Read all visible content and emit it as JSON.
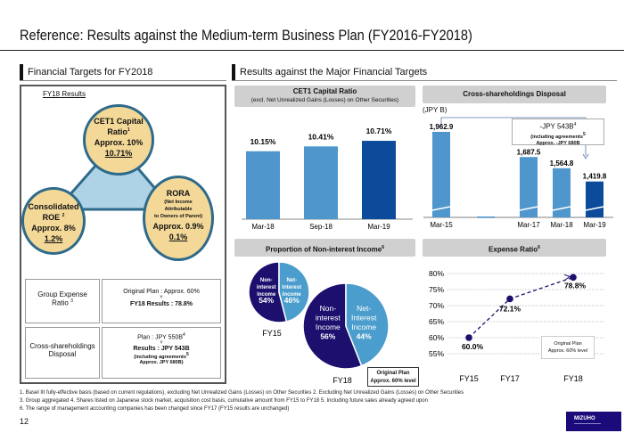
{
  "page": {
    "title": "Reference: Results against the Medium-term Business Plan (FY2016-FY2018)",
    "page_number": "12",
    "logo": "MIZUHO",
    "brand_color": "#1a0a7a"
  },
  "left": {
    "section_title": "Financial Targets for FY2018",
    "results_label": "FY18 Results",
    "circles": [
      {
        "id": "cet1",
        "title": "CET1 Capital",
        "title2": "Ratio",
        "sup": "1",
        "target": "Approx. 10%",
        "result": "10.71%"
      },
      {
        "id": "roe",
        "title": "Consolidated",
        "title2": "ROE",
        "sup": "2",
        "target": "Approx. 8%",
        "result": "1.2%"
      },
      {
        "id": "rora",
        "title": "RORA",
        "sub": [
          "(Net Income",
          "Attributable",
          "to Owners of Parent)"
        ],
        "target": "Approx. 0.9%",
        "result": "0.1%"
      }
    ],
    "table": [
      {
        "label": "Group Expense",
        "label2": "Ratio",
        "sup": "3",
        "line1": "Original Plan : Approx. 60%",
        "line2": "FY18 Results : 78.8%"
      },
      {
        "label": "Cross-shareholdings",
        "label2": "Disposal",
        "line1": "Plan : JPY 550B",
        "line1_sup": "4",
        "line2": "Results : JPY 543B",
        "line3": "(including agreements",
        "line3_sup": "5",
        "line4": "Approx. JPY 680B)"
      }
    ]
  },
  "right": {
    "section_title": "Results against the Major Financial Targets"
  },
  "chart_data": [
    {
      "id": "cet1",
      "type": "bar",
      "title": "CET1 Capital Ratio",
      "subtitle": "(excl. Net Unrealized Gains (Losses) on Other Securities)",
      "categories": [
        "Mar-18",
        "Sep-18",
        "Mar-19"
      ],
      "values": [
        10.15,
        10.41,
        10.71
      ],
      "labels": [
        "10.15%",
        "10.41%",
        "10.71%"
      ],
      "colors": [
        "#4f96cc",
        "#4f96cc",
        "#0c4a9a"
      ],
      "ylim": [
        6.5,
        11.0
      ]
    },
    {
      "id": "cross",
      "type": "bar",
      "title": "Cross-shareholdings Disposal",
      "unit": "(JPY B)",
      "categories": [
        "Mar-15",
        "",
        "Mar-17",
        "Mar-18",
        "Mar-19"
      ],
      "values": [
        1962.9,
        null,
        1687.5,
        1564.8,
        1419.8
      ],
      "labels": [
        "1,962.9",
        "",
        "1,687.5",
        "1,564.8",
        "1,419.8"
      ],
      "colors": [
        "#4f96cc",
        "#4f96cc",
        "#4f96cc",
        "#4f96cc",
        "#0c4a9a"
      ],
      "axis_break": true,
      "annotation": {
        "line1": "-JPY 543B",
        "sup1": "4",
        "line2": "(including agreements",
        "sup2": "5",
        "line3": "Approx. -JPY 680B"
      }
    },
    {
      "id": "nonint",
      "type": "pie",
      "title": "Proportion of Non-interest Income",
      "title_sup": "6",
      "pies": [
        {
          "label": "FY15",
          "slices": [
            {
              "name": "Non-interest Income",
              "value": 54,
              "label": "54%",
              "color": "#1c0f6e"
            },
            {
              "name": "Net-Interest Income",
              "value": 46,
              "label": "46%",
              "color": "#4a9dcc"
            }
          ]
        },
        {
          "label": "FY18",
          "slices": [
            {
              "name": "Non-interest Income",
              "value": 56,
              "label": "56%",
              "color": "#1c0f6e"
            },
            {
              "name": "Net-Interest Income",
              "value": 44,
              "label": "44%",
              "color": "#4a9dcc"
            }
          ]
        }
      ],
      "note": {
        "line1": "Original Plan",
        "line2": "Approx. 60% level"
      }
    },
    {
      "id": "expense",
      "type": "line",
      "title": "Expense Ratio",
      "title_sup": "6",
      "x": [
        "FY15",
        "FY17",
        "FY18"
      ],
      "values": [
        60.0,
        72.1,
        78.8
      ],
      "labels": [
        "60.0%",
        "72.1%",
        "78.8%"
      ],
      "yticks": [
        "80%",
        "75%",
        "70%",
        "65%",
        "60%",
        "55%"
      ],
      "ylim": [
        55,
        80
      ],
      "grid": true,
      "color": "#1c0f6e",
      "note": {
        "line1": "Original Plan",
        "line2": "Approx. 60% level"
      }
    }
  ],
  "footnotes": [
    "1. Basel III fully-effective basis (based on current regulations), excluding Net Unrealized Gains (Losses) on Other Securities 2. Excluding Net Unrealized Gains (Losses) on Other Securities",
    "3. Group aggregated 4. Shares listed on Japanese stock market, acquisition cost basis, cumulative amount from FY15 to FY18  5. Including future sales already agreed upon",
    "6. The range of management accounting companies has been changed since FY17 (FY15 results are unchanged)"
  ]
}
